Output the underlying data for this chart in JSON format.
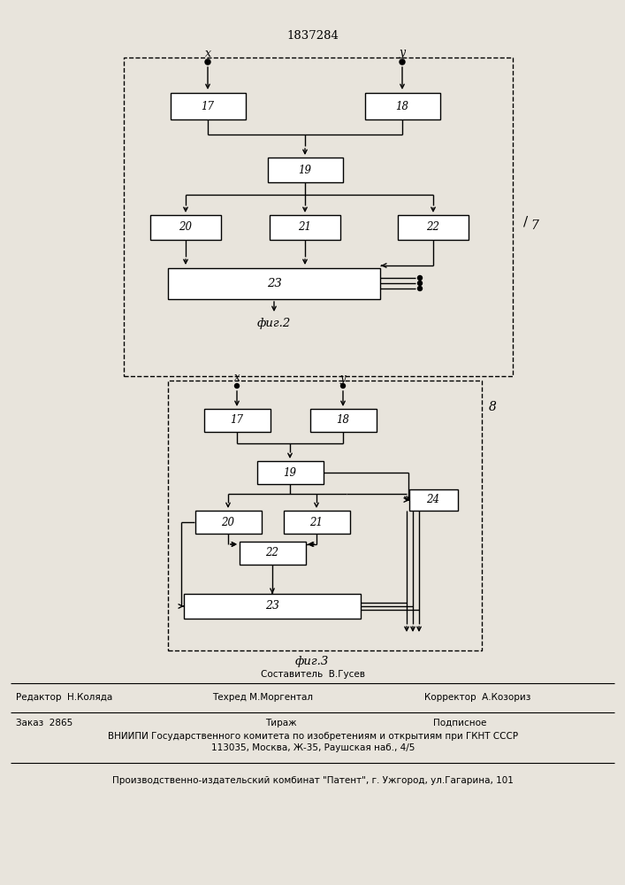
{
  "title": "1837284",
  "fig2_label": "фиг.2",
  "fig3_label": "фиг.3",
  "bg_color": "#e8e4dc",
  "box_color": "#ffffff",
  "line_color": "#000000",
  "footer_line1": "Составитель  В.Гусев",
  "footer_editor": "Редактор  Н.Коляда",
  "footer_techred": "Техред М.Моргентал",
  "footer_corrector": "Корректор  А.Козориз",
  "footer_order": "Заказ  2865",
  "footer_tirazh": "Тираж",
  "footer_podpisnoe": "Подписное",
  "footer_vniipи": "ВНИИПИ Государственного комитета по изобретениям и открытиям при ГКНТ СССР",
  "footer_address": "113035, Москва, Ж-35, Раушская наб., 4/5",
  "footer_bottom": "Производственно-издательский комбинат \"Патент\", г. Ужгород, ул.Гагарина, 101"
}
